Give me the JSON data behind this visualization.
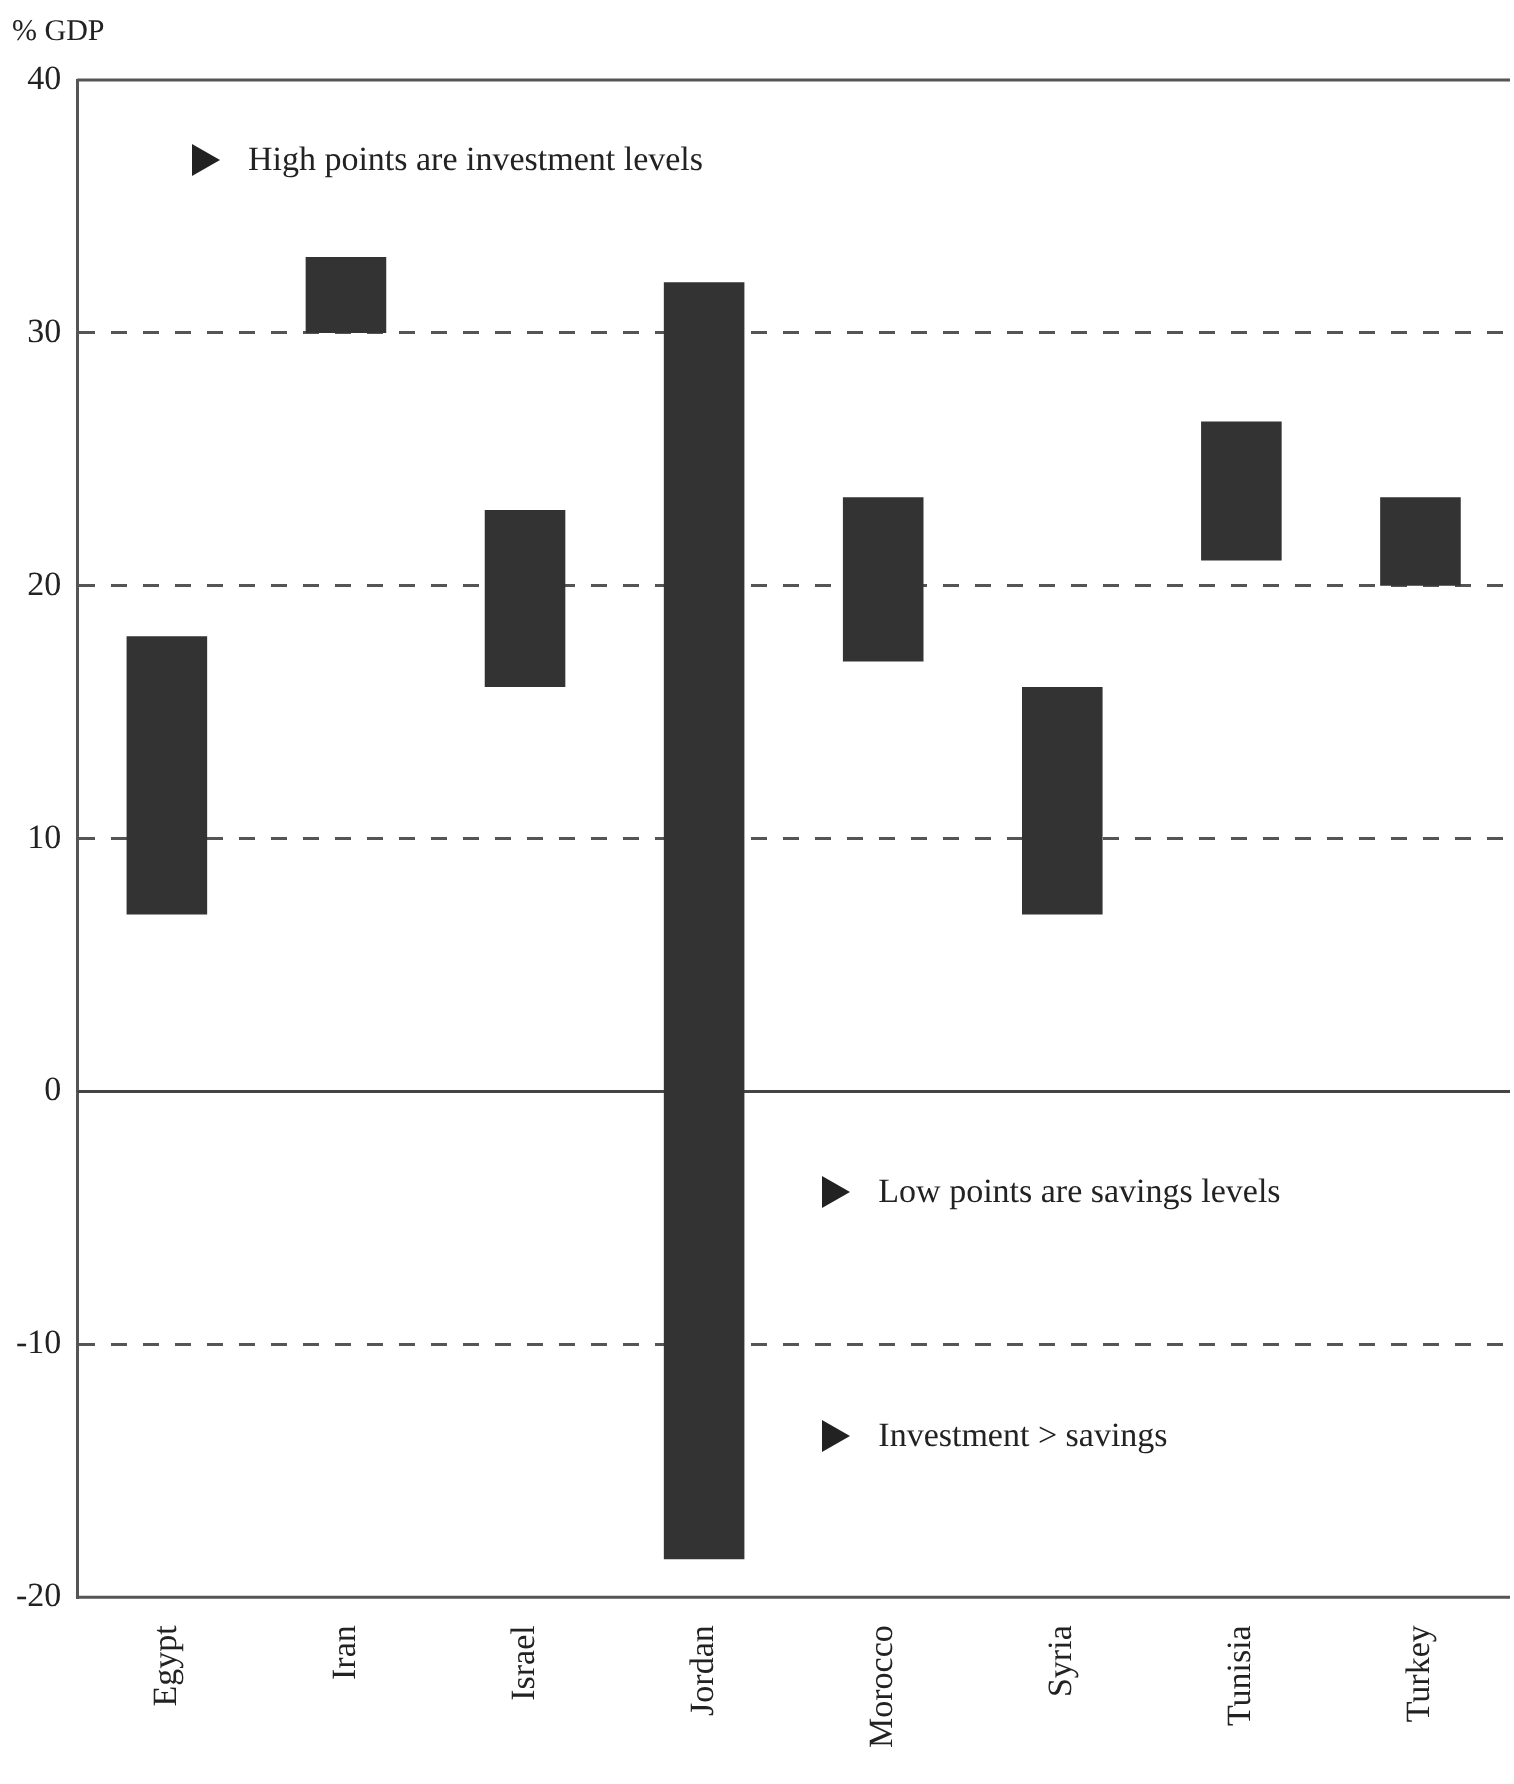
{
  "chart_data": {
    "type": "bar",
    "ylabel": "% GDP",
    "categories": [
      "Egypt",
      "Iran",
      "Israel",
      "Jordan",
      "Morocco",
      "Syria",
      "Tunisia",
      "Turkey"
    ],
    "base": [
      7,
      30,
      16,
      -18.5,
      17,
      7,
      21,
      20
    ],
    "values": [
      11,
      3,
      7,
      50.5,
      6.5,
      9,
      5.5,
      3.5
    ],
    "color": "#333333",
    "ylim": [
      -20,
      40
    ],
    "yticks": [
      -20,
      -10,
      0,
      10,
      20,
      30,
      40
    ],
    "grid": "y",
    "line_style": "dashed",
    "ref_lines": [
      {
        "axis": "y",
        "value": 0,
        "line_style": "solid",
        "color": "#444444"
      }
    ],
    "annotations": [
      "High points are investment levels",
      "Low points are savings levels",
      "Investment > savings"
    ],
    "legend": false
  }
}
